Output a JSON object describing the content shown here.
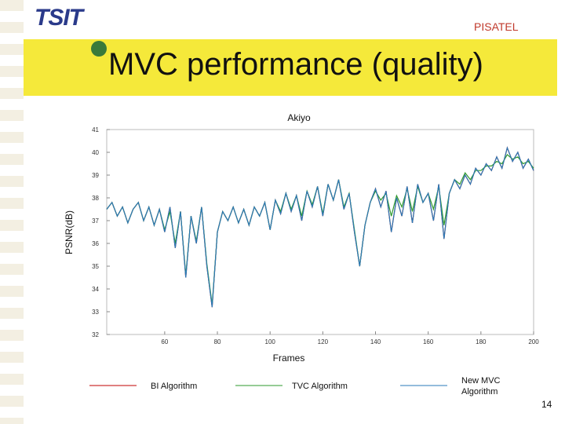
{
  "header": {
    "logo": "TSIT",
    "brand": "PISATEL",
    "title": "MVC performance (quality)"
  },
  "page_number": "14",
  "chart_data": {
    "type": "line",
    "title": "Akiyo",
    "x_label": "Frames",
    "y_label": "PSNR(dB)",
    "x": [
      38,
      40,
      42,
      44,
      46,
      48,
      50,
      52,
      54,
      56,
      58,
      60,
      62,
      64,
      66,
      68,
      70,
      72,
      74,
      76,
      78,
      80,
      82,
      84,
      86,
      88,
      90,
      92,
      94,
      96,
      98,
      100,
      102,
      104,
      106,
      108,
      110,
      112,
      114,
      116,
      118,
      120,
      122,
      124,
      126,
      128,
      130,
      132,
      134,
      136,
      138,
      140,
      142,
      144,
      146,
      148,
      150,
      152,
      154,
      156,
      158,
      160,
      162,
      164,
      166,
      168,
      170,
      172,
      174,
      176,
      178,
      180,
      182,
      184,
      186,
      188,
      190,
      192,
      194,
      196,
      198,
      200
    ],
    "series": [
      {
        "name": "BI Algorithm",
        "color": "#c00000",
        "values": [
          37.5,
          37.8,
          37.2,
          37.6,
          36.9,
          37.5,
          37.8,
          37.0,
          37.6,
          36.8,
          37.5,
          36.5,
          37.6,
          35.8,
          37.4,
          34.5,
          37.2,
          36.0,
          37.6,
          35.0,
          33.2,
          36.5,
          37.4,
          37.0,
          37.6,
          36.9,
          37.5,
          36.8,
          37.6,
          37.2,
          37.8,
          36.6,
          37.9,
          37.3,
          38.2,
          37.4,
          38.1,
          37.0,
          38.3,
          37.6,
          38.5,
          37.2,
          38.6,
          37.9,
          38.8,
          37.5,
          38.2,
          36.5,
          35.0,
          36.8,
          37.8,
          38.4,
          37.6,
          38.3,
          36.5,
          38.0,
          37.2,
          38.5,
          36.9,
          38.6,
          37.8,
          38.2,
          37.0,
          38.6,
          36.2,
          38.2,
          38.8,
          38.4,
          39.0,
          38.6,
          39.3,
          39.0,
          39.5,
          39.2,
          39.8,
          39.3,
          40.2,
          39.6,
          40.0,
          39.3,
          39.7,
          39.2
        ]
      },
      {
        "name": "TVC Algorithm",
        "color": "#2e9a2e",
        "values": [
          37.5,
          37.8,
          37.2,
          37.6,
          36.9,
          37.5,
          37.8,
          37.0,
          37.6,
          36.8,
          37.5,
          36.6,
          37.4,
          36.0,
          37.4,
          34.6,
          37.2,
          36.1,
          37.6,
          35.1,
          33.3,
          36.5,
          37.4,
          37.0,
          37.6,
          36.9,
          37.5,
          36.8,
          37.6,
          37.2,
          37.8,
          36.6,
          37.9,
          37.4,
          38.2,
          37.5,
          38.1,
          37.2,
          38.3,
          37.7,
          38.5,
          37.3,
          38.6,
          37.9,
          38.8,
          37.6,
          38.2,
          36.6,
          35.0,
          36.8,
          37.8,
          38.3,
          37.9,
          38.2,
          37.2,
          38.1,
          37.6,
          38.4,
          37.4,
          38.5,
          37.8,
          38.2,
          37.5,
          38.5,
          36.8,
          38.2,
          38.8,
          38.6,
          39.1,
          38.8,
          39.2,
          39.2,
          39.4,
          39.4,
          39.6,
          39.5,
          39.9,
          39.7,
          39.8,
          39.5,
          39.6,
          39.3
        ]
      },
      {
        "name": "New MVC Algorithm",
        "color": "#2a7ab8",
        "values": [
          37.5,
          37.8,
          37.2,
          37.6,
          36.9,
          37.5,
          37.8,
          37.0,
          37.6,
          36.8,
          37.5,
          36.5,
          37.6,
          35.8,
          37.4,
          34.5,
          37.2,
          36.0,
          37.6,
          35.0,
          33.2,
          36.5,
          37.4,
          37.0,
          37.6,
          36.9,
          37.5,
          36.8,
          37.6,
          37.2,
          37.8,
          36.6,
          37.9,
          37.3,
          38.2,
          37.4,
          38.1,
          37.0,
          38.3,
          37.6,
          38.5,
          37.2,
          38.6,
          37.9,
          38.8,
          37.5,
          38.2,
          36.5,
          35.0,
          36.8,
          37.8,
          38.4,
          37.6,
          38.3,
          36.5,
          38.0,
          37.2,
          38.5,
          36.9,
          38.6,
          37.8,
          38.2,
          37.0,
          38.6,
          36.2,
          38.2,
          38.8,
          38.4,
          39.0,
          38.6,
          39.3,
          39.0,
          39.5,
          39.2,
          39.8,
          39.3,
          40.2,
          39.6,
          40.0,
          39.3,
          39.7,
          39.2
        ]
      }
    ],
    "xlim": [
      38,
      200
    ],
    "xticks": [
      60,
      80,
      100,
      120,
      140,
      160,
      180,
      200
    ],
    "ylim": [
      32,
      41
    ],
    "yticks": [
      32,
      33,
      34,
      35,
      36,
      37,
      38,
      39,
      40,
      41
    ]
  }
}
